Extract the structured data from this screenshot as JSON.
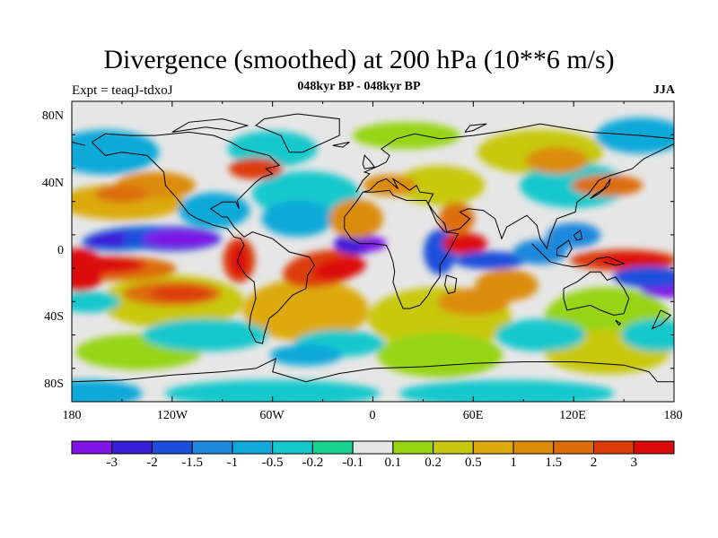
{
  "title": "Divergence (smoothed) at 200 hPa (10**6 m/s)",
  "subtitle": "048kyr BP - 048kyr BP",
  "left_label": "Expt = teaqJ-tdxoJ",
  "right_label": "JJA",
  "y_ticks": [
    "80N",
    "40N",
    "0",
    "40S",
    "80S"
  ],
  "x_ticks": [
    "180",
    "120W",
    "60W",
    "0",
    "60E",
    "120E",
    "180"
  ],
  "colorbar": {
    "colors": [
      "#7e14e6",
      "#3a1fd9",
      "#1d4fdb",
      "#1e88dc",
      "#11a9d9",
      "#14c8cc",
      "#1ad28f",
      "#e6e6e6",
      "#97d412",
      "#c8c80f",
      "#dcaa0a",
      "#dc8c0a",
      "#dc6e0a",
      "#dc3c0a",
      "#dc0a0a"
    ],
    "labels": [
      "-3",
      "-2",
      "-1.5",
      "-1",
      "-0.5",
      "-0.2",
      "-0.1",
      "0.1",
      "0.2",
      "0.5",
      "1",
      "1.5",
      "2",
      "3"
    ]
  }
}
